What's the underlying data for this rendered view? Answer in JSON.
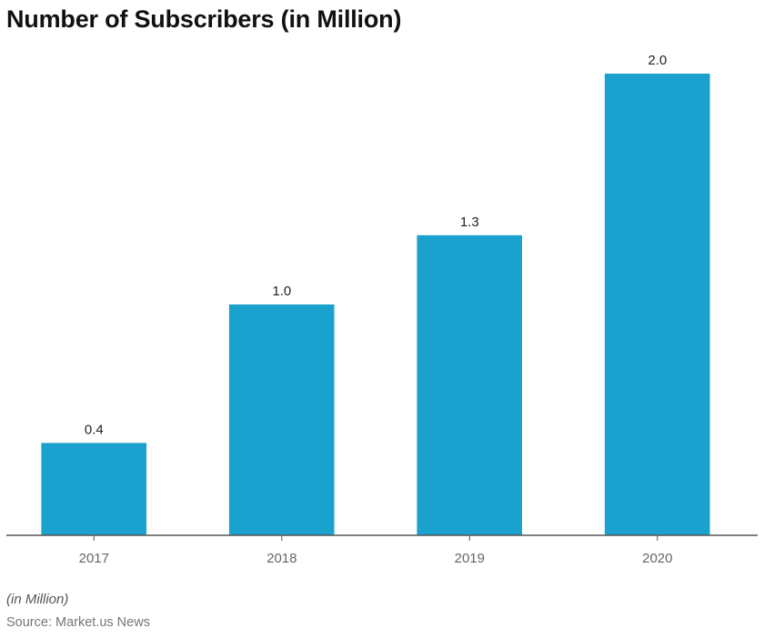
{
  "title": "Number of Subscribers (in Million)",
  "note": "(in Million)",
  "source": "Source: Market.us News",
  "colors": {
    "bar": "#1aa1cd",
    "axis": "#555555",
    "title": "#111111"
  },
  "chart_data": {
    "type": "bar",
    "title": "Number of Subscribers (in Million)",
    "xlabel": "",
    "ylabel": "",
    "categories": [
      "2017",
      "2018",
      "2019",
      "2020"
    ],
    "values": [
      0.4,
      1.0,
      1.3,
      2.0
    ],
    "value_labels": [
      "0.4",
      "1.0",
      "1.3",
      "2.0"
    ],
    "ylim": [
      0,
      2.0
    ],
    "grid": false,
    "legend": "none",
    "unit_note": "(in Million)"
  }
}
